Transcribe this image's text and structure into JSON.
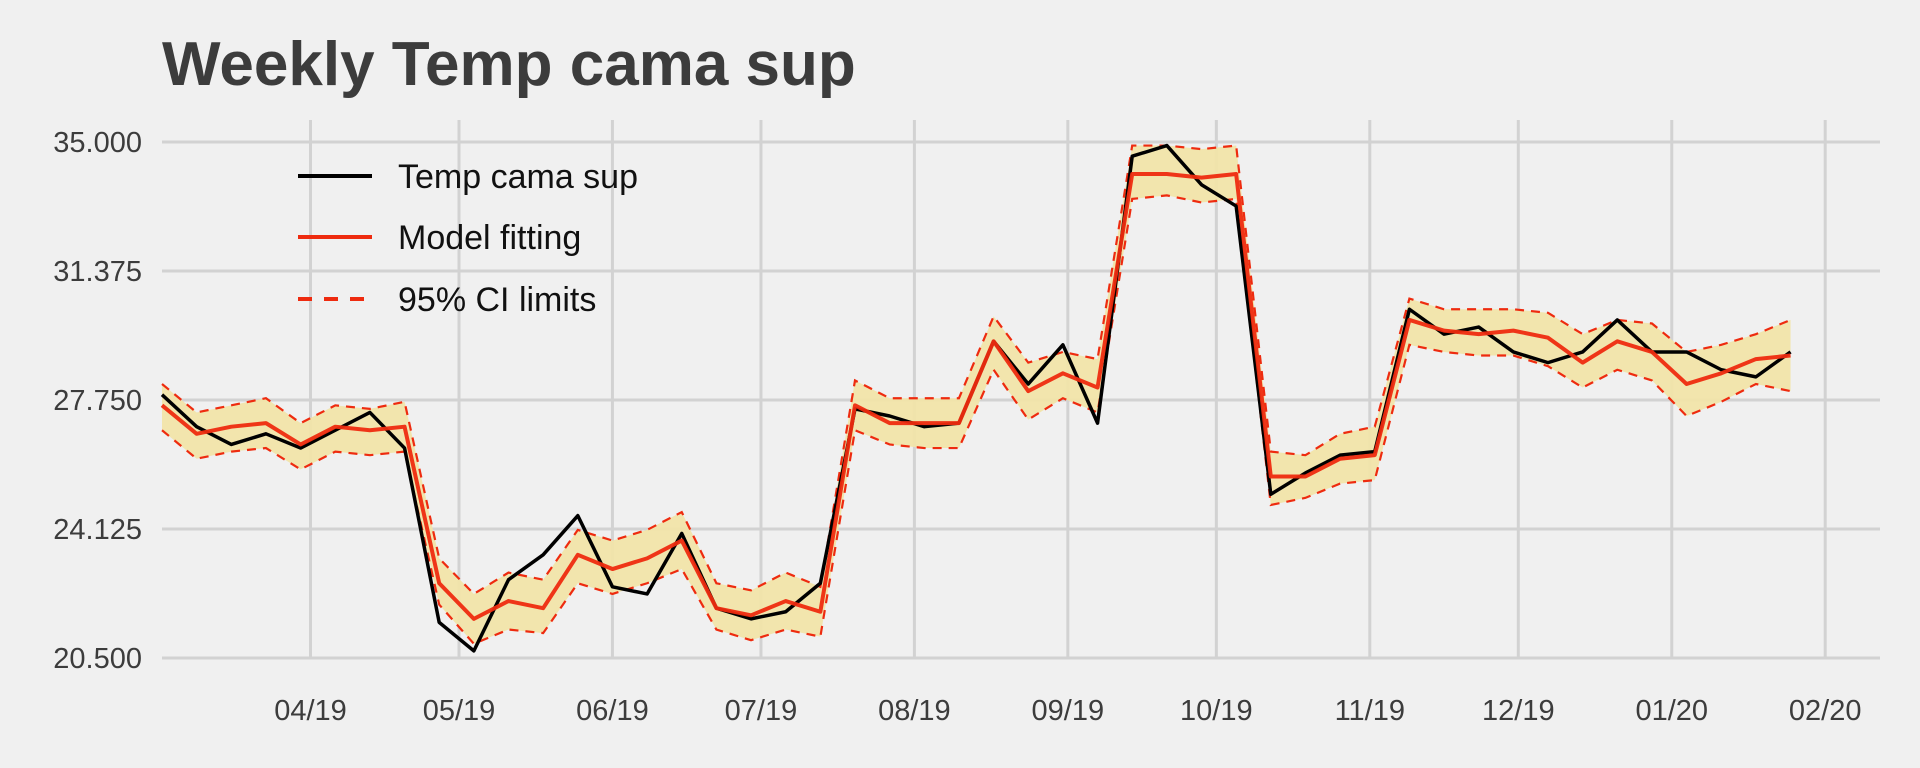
{
  "chart_data": {
    "type": "line",
    "title": "Weekly Temp cama sup",
    "xlabel": "",
    "ylabel": "",
    "ylim": [
      20.5,
      35.0
    ],
    "yticks": [
      "35.000",
      "31.375",
      "27.750",
      "24.125",
      "20.500"
    ],
    "xticks": [
      "04/19",
      "05/19",
      "06/19",
      "07/19",
      "08/19",
      "09/19",
      "10/19",
      "11/19",
      "12/19",
      "01/20",
      "02/20"
    ],
    "legend_position": "top-left",
    "grid": true,
    "series": [
      {
        "name": "Temp cama sup",
        "color": "#000000",
        "style": "solid",
        "points": [
          [
            "2019-03-02",
            27.9
          ],
          [
            "2019-03-09",
            27.0
          ],
          [
            "2019-03-16",
            26.5
          ],
          [
            "2019-03-23",
            26.8
          ],
          [
            "2019-03-30",
            26.4
          ],
          [
            "2019-04-06",
            26.9
          ],
          [
            "2019-04-13",
            27.4
          ],
          [
            "2019-04-20",
            26.4
          ],
          [
            "2019-04-27",
            21.5
          ],
          [
            "2019-05-04",
            20.7
          ],
          [
            "2019-05-11",
            22.7
          ],
          [
            "2019-05-18",
            23.4
          ],
          [
            "2019-05-25",
            24.5
          ],
          [
            "2019-06-01",
            22.5
          ],
          [
            "2019-06-08",
            22.3
          ],
          [
            "2019-06-15",
            24.0
          ],
          [
            "2019-06-22",
            21.9
          ],
          [
            "2019-06-29",
            21.6
          ],
          [
            "2019-07-06",
            21.8
          ],
          [
            "2019-07-13",
            22.6
          ],
          [
            "2019-07-20",
            27.5
          ],
          [
            "2019-07-27",
            27.3
          ],
          [
            "2019-08-03",
            27.0
          ],
          [
            "2019-08-10",
            27.1
          ],
          [
            "2019-08-17",
            29.4
          ],
          [
            "2019-08-24",
            28.2
          ],
          [
            "2019-08-31",
            29.3
          ],
          [
            "2019-09-07",
            27.1
          ],
          [
            "2019-09-14",
            34.6
          ],
          [
            "2019-09-21",
            34.9
          ],
          [
            "2019-09-28",
            33.8
          ],
          [
            "2019-10-05",
            33.2
          ],
          [
            "2019-10-12",
            25.1
          ],
          [
            "2019-10-19",
            25.7
          ],
          [
            "2019-10-26",
            26.2
          ],
          [
            "2019-11-02",
            26.3
          ],
          [
            "2019-11-09",
            30.3
          ],
          [
            "2019-11-16",
            29.6
          ],
          [
            "2019-11-23",
            29.8
          ],
          [
            "2019-11-30",
            29.1
          ],
          [
            "2019-12-07",
            28.8
          ],
          [
            "2019-12-14",
            29.1
          ],
          [
            "2019-12-21",
            30.0
          ],
          [
            "2019-12-28",
            29.1
          ],
          [
            "2020-01-04",
            29.1
          ],
          [
            "2020-01-11",
            28.6
          ],
          [
            "2020-01-18",
            28.4
          ],
          [
            "2020-01-25",
            29.1
          ]
        ]
      },
      {
        "name": "Model fitting",
        "color": "#ee2b0f",
        "style": "solid",
        "points": [
          [
            "2019-03-02",
            27.6
          ],
          [
            "2019-03-09",
            26.8
          ],
          [
            "2019-03-16",
            27.0
          ],
          [
            "2019-03-23",
            27.1
          ],
          [
            "2019-03-30",
            26.5
          ],
          [
            "2019-04-06",
            27.0
          ],
          [
            "2019-04-13",
            26.9
          ],
          [
            "2019-04-20",
            27.0
          ],
          [
            "2019-04-27",
            22.6
          ],
          [
            "2019-05-04",
            21.6
          ],
          [
            "2019-05-11",
            22.1
          ],
          [
            "2019-05-18",
            21.9
          ],
          [
            "2019-05-25",
            23.4
          ],
          [
            "2019-06-01",
            23.0
          ],
          [
            "2019-06-08",
            23.3
          ],
          [
            "2019-06-15",
            23.8
          ],
          [
            "2019-06-22",
            21.9
          ],
          [
            "2019-06-29",
            21.7
          ],
          [
            "2019-07-06",
            22.1
          ],
          [
            "2019-07-13",
            21.8
          ],
          [
            "2019-07-20",
            27.6
          ],
          [
            "2019-07-27",
            27.1
          ],
          [
            "2019-08-03",
            27.1
          ],
          [
            "2019-08-10",
            27.1
          ],
          [
            "2019-08-17",
            29.4
          ],
          [
            "2019-08-24",
            28.0
          ],
          [
            "2019-08-31",
            28.5
          ],
          [
            "2019-09-07",
            28.1
          ],
          [
            "2019-09-14",
            34.1
          ],
          [
            "2019-09-21",
            34.1
          ],
          [
            "2019-09-28",
            34.0
          ],
          [
            "2019-10-05",
            34.1
          ],
          [
            "2019-10-12",
            25.6
          ],
          [
            "2019-10-19",
            25.6
          ],
          [
            "2019-10-26",
            26.1
          ],
          [
            "2019-11-02",
            26.2
          ],
          [
            "2019-11-09",
            30.0
          ],
          [
            "2019-11-16",
            29.7
          ],
          [
            "2019-11-23",
            29.6
          ],
          [
            "2019-11-30",
            29.7
          ],
          [
            "2019-12-07",
            29.5
          ],
          [
            "2019-12-14",
            28.8
          ],
          [
            "2019-12-21",
            29.4
          ],
          [
            "2019-12-28",
            29.1
          ],
          [
            "2020-01-04",
            28.2
          ],
          [
            "2020-01-11",
            28.5
          ],
          [
            "2020-01-18",
            28.9
          ],
          [
            "2020-01-25",
            29.0
          ]
        ]
      },
      {
        "name": "95% CI limits",
        "color": "#ee2b0f",
        "style": "dashed",
        "upper": [
          [
            "2019-03-02",
            28.2
          ],
          [
            "2019-03-09",
            27.4
          ],
          [
            "2019-03-16",
            27.6
          ],
          [
            "2019-03-23",
            27.8
          ],
          [
            "2019-03-30",
            27.1
          ],
          [
            "2019-04-06",
            27.6
          ],
          [
            "2019-04-13",
            27.5
          ],
          [
            "2019-04-20",
            27.7
          ],
          [
            "2019-04-27",
            23.3
          ],
          [
            "2019-05-04",
            22.3
          ],
          [
            "2019-05-11",
            22.9
          ],
          [
            "2019-05-18",
            22.7
          ],
          [
            "2019-05-25",
            24.1
          ],
          [
            "2019-06-01",
            23.8
          ],
          [
            "2019-06-08",
            24.1
          ],
          [
            "2019-06-15",
            24.6
          ],
          [
            "2019-06-22",
            22.6
          ],
          [
            "2019-06-29",
            22.4
          ],
          [
            "2019-07-06",
            22.9
          ],
          [
            "2019-07-13",
            22.5
          ],
          [
            "2019-07-20",
            28.3
          ],
          [
            "2019-07-27",
            27.8
          ],
          [
            "2019-08-03",
            27.8
          ],
          [
            "2019-08-10",
            27.8
          ],
          [
            "2019-08-17",
            30.1
          ],
          [
            "2019-08-24",
            28.8
          ],
          [
            "2019-08-31",
            29.1
          ],
          [
            "2019-09-07",
            28.9
          ],
          [
            "2019-09-14",
            34.9
          ],
          [
            "2019-09-21",
            34.9
          ],
          [
            "2019-09-28",
            34.8
          ],
          [
            "2019-10-05",
            34.9
          ],
          [
            "2019-10-12",
            26.3
          ],
          [
            "2019-10-19",
            26.2
          ],
          [
            "2019-10-26",
            26.8
          ],
          [
            "2019-11-02",
            27.0
          ],
          [
            "2019-11-09",
            30.6
          ],
          [
            "2019-11-16",
            30.3
          ],
          [
            "2019-11-23",
            30.3
          ],
          [
            "2019-11-30",
            30.3
          ],
          [
            "2019-12-07",
            30.2
          ],
          [
            "2019-12-14",
            29.6
          ],
          [
            "2019-12-21",
            30.0
          ],
          [
            "2019-12-28",
            29.9
          ],
          [
            "2020-01-04",
            29.1
          ],
          [
            "2020-01-11",
            29.3
          ],
          [
            "2020-01-18",
            29.6
          ],
          [
            "2020-01-25",
            30.0
          ]
        ],
        "lower": [
          [
            "2019-03-02",
            26.9
          ],
          [
            "2019-03-09",
            26.1
          ],
          [
            "2019-03-16",
            26.3
          ],
          [
            "2019-03-23",
            26.4
          ],
          [
            "2019-03-30",
            25.8
          ],
          [
            "2019-04-06",
            26.3
          ],
          [
            "2019-04-13",
            26.2
          ],
          [
            "2019-04-20",
            26.3
          ],
          [
            "2019-04-27",
            22.0
          ],
          [
            "2019-05-04",
            20.9
          ],
          [
            "2019-05-11",
            21.3
          ],
          [
            "2019-05-18",
            21.2
          ],
          [
            "2019-05-25",
            22.6
          ],
          [
            "2019-06-01",
            22.3
          ],
          [
            "2019-06-08",
            22.6
          ],
          [
            "2019-06-15",
            23.0
          ],
          [
            "2019-06-22",
            21.3
          ],
          [
            "2019-06-29",
            21.0
          ],
          [
            "2019-07-06",
            21.3
          ],
          [
            "2019-07-13",
            21.1
          ],
          [
            "2019-07-20",
            26.9
          ],
          [
            "2019-07-27",
            26.5
          ],
          [
            "2019-08-03",
            26.4
          ],
          [
            "2019-08-10",
            26.4
          ],
          [
            "2019-08-17",
            28.6
          ],
          [
            "2019-08-24",
            27.2
          ],
          [
            "2019-08-31",
            27.8
          ],
          [
            "2019-09-07",
            27.4
          ],
          [
            "2019-09-14",
            33.4
          ],
          [
            "2019-09-21",
            33.5
          ],
          [
            "2019-09-28",
            33.3
          ],
          [
            "2019-10-05",
            33.4
          ],
          [
            "2019-10-12",
            24.8
          ],
          [
            "2019-10-19",
            25.0
          ],
          [
            "2019-10-26",
            25.4
          ],
          [
            "2019-11-02",
            25.5
          ],
          [
            "2019-11-09",
            29.3
          ],
          [
            "2019-11-16",
            29.1
          ],
          [
            "2019-11-23",
            29.0
          ],
          [
            "2019-11-30",
            29.0
          ],
          [
            "2019-12-07",
            28.7
          ],
          [
            "2019-12-14",
            28.1
          ],
          [
            "2019-12-21",
            28.6
          ],
          [
            "2019-12-28",
            28.3
          ],
          [
            "2020-01-04",
            27.3
          ],
          [
            "2020-01-11",
            27.7
          ],
          [
            "2020-01-18",
            28.2
          ],
          [
            "2020-01-25",
            28.0
          ]
        ]
      }
    ],
    "band_color": "#f1e4a9"
  }
}
